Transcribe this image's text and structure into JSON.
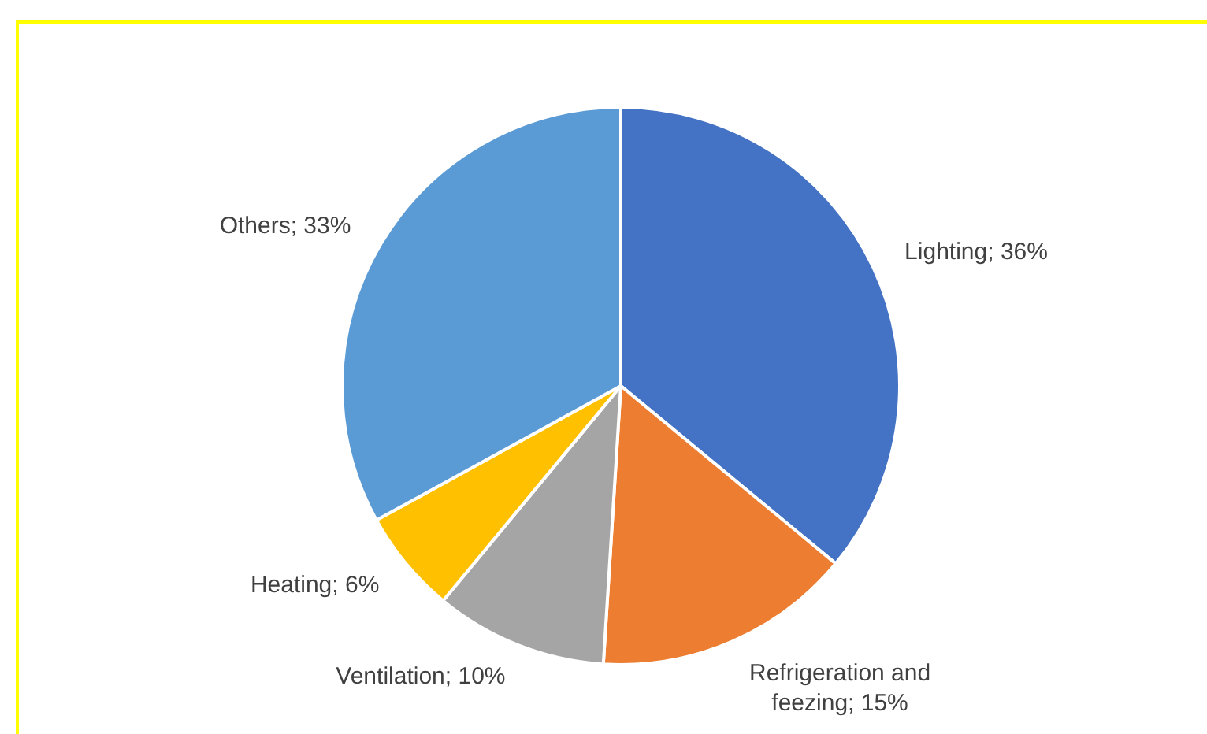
{
  "chart_data": {
    "type": "pie",
    "categories": [
      "Lighting",
      "Refrigeration and feezing",
      "Ventilation",
      "Heating",
      "Others"
    ],
    "values": [
      36,
      15,
      10,
      6,
      33
    ],
    "value_labels": [
      "36%",
      "15%",
      "10%",
      "6%",
      "33%"
    ],
    "colors": [
      "#4472c4",
      "#ed7d31",
      "#a5a5a5",
      "#ffc000",
      "#5b9bd5"
    ],
    "legend": false
  }
}
